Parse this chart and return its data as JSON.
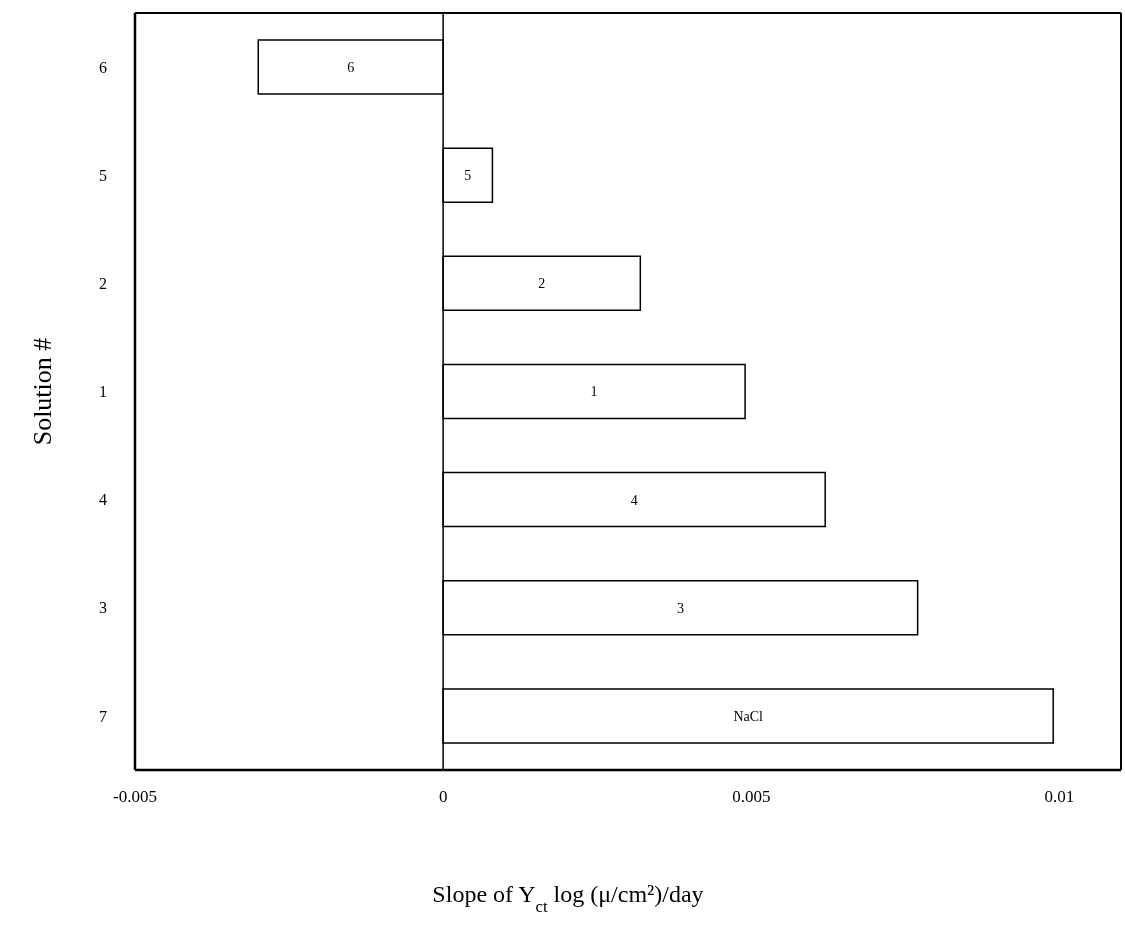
{
  "chart_data": {
    "type": "bar",
    "orientation": "horizontal",
    "xlabel": "Slope of Y$_{ct}$ log (μ/cm²)/day",
    "ylabel": "Solution #",
    "categories": [
      "6",
      "5",
      "2",
      "1",
      "4",
      "3",
      "7"
    ],
    "values": [
      -0.003,
      0.0008,
      0.0032,
      0.0049,
      0.0062,
      0.0077,
      0.0099
    ],
    "annotations": [
      "6",
      "5",
      "2",
      "1",
      "4",
      "3",
      "NaCl"
    ],
    "color": "#ffffff",
    "xlim": [
      -0.005,
      0.011
    ],
    "xticks": [
      -0.005,
      0,
      0.005,
      0.01
    ],
    "ref_lines": [
      {
        "axis": "x",
        "value": 0
      }
    ],
    "grid": false,
    "legend": false
  }
}
